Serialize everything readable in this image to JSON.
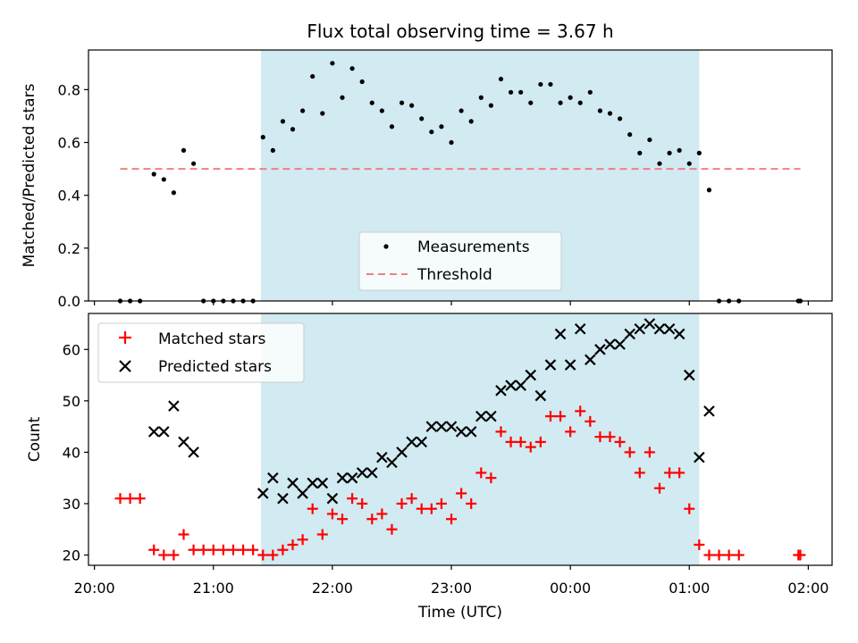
{
  "figure": {
    "title": "Flux total observing time = 3.67 h",
    "xlabel": "Time (UTC)"
  },
  "chart_data": [
    {
      "type": "scatter",
      "panel": "top",
      "ylabel": "Matched/Predicted stars",
      "xlim": [
        "19:57",
        "02:12"
      ],
      "ylim": [
        0,
        0.95
      ],
      "yticks": [
        "0.0",
        "0.2",
        "0.4",
        "0.6",
        "0.8"
      ],
      "shaded_region": {
        "x_start": "21:24",
        "x_end": "01:05",
        "color": "#d2eaf1"
      },
      "legend": {
        "placement": "lower-center",
        "entries": [
          "Measurements",
          "Threshold"
        ]
      },
      "threshold": {
        "name": "Threshold",
        "y": 0.5,
        "x_start": "20:13",
        "x_end": "01:56",
        "color": "#f08080"
      },
      "series": [
        {
          "name": "Measurements",
          "color": "#000000",
          "points": [
            [
              "20:13",
              0.0
            ],
            [
              "20:18",
              0.0
            ],
            [
              "20:23",
              0.0
            ],
            [
              "20:30",
              0.48
            ],
            [
              "20:35",
              0.46
            ],
            [
              "20:40",
              0.41
            ],
            [
              "20:45",
              0.57
            ],
            [
              "20:50",
              0.52
            ],
            [
              "20:55",
              0.0
            ],
            [
              "21:00",
              0.0
            ],
            [
              "21:05",
              0.0
            ],
            [
              "21:10",
              0.0
            ],
            [
              "21:15",
              0.0
            ],
            [
              "21:20",
              0.0
            ],
            [
              "21:25",
              0.62
            ],
            [
              "21:30",
              0.57
            ],
            [
              "21:35",
              0.68
            ],
            [
              "21:40",
              0.65
            ],
            [
              "21:45",
              0.72
            ],
            [
              "21:50",
              0.85
            ],
            [
              "21:55",
              0.71
            ],
            [
              "22:00",
              0.9
            ],
            [
              "22:05",
              0.77
            ],
            [
              "22:10",
              0.88
            ],
            [
              "22:15",
              0.83
            ],
            [
              "22:20",
              0.75
            ],
            [
              "22:25",
              0.72
            ],
            [
              "22:30",
              0.66
            ],
            [
              "22:35",
              0.75
            ],
            [
              "22:40",
              0.74
            ],
            [
              "22:45",
              0.69
            ],
            [
              "22:50",
              0.64
            ],
            [
              "22:55",
              0.66
            ],
            [
              "23:00",
              0.6
            ],
            [
              "23:05",
              0.72
            ],
            [
              "23:10",
              0.68
            ],
            [
              "23:15",
              0.77
            ],
            [
              "23:20",
              0.74
            ],
            [
              "23:25",
              0.84
            ],
            [
              "23:30",
              0.79
            ],
            [
              "23:35",
              0.79
            ],
            [
              "23:40",
              0.75
            ],
            [
              "23:45",
              0.82
            ],
            [
              "23:50",
              0.82
            ],
            [
              "23:55",
              0.75
            ],
            [
              "00:00",
              0.77
            ],
            [
              "00:05",
              0.75
            ],
            [
              "00:10",
              0.79
            ],
            [
              "00:15",
              0.72
            ],
            [
              "00:20",
              0.71
            ],
            [
              "00:25",
              0.69
            ],
            [
              "00:30",
              0.63
            ],
            [
              "00:35",
              0.56
            ],
            [
              "00:40",
              0.61
            ],
            [
              "00:45",
              0.52
            ],
            [
              "00:50",
              0.56
            ],
            [
              "00:55",
              0.57
            ],
            [
              "01:00",
              0.52
            ],
            [
              "01:05",
              0.56
            ],
            [
              "01:10",
              0.42
            ],
            [
              "01:15",
              0.0
            ],
            [
              "01:20",
              0.0
            ],
            [
              "01:25",
              0.0
            ],
            [
              "01:55",
              0.0
            ],
            [
              "01:56",
              0.0
            ]
          ]
        }
      ]
    },
    {
      "type": "scatter",
      "panel": "bottom",
      "ylabel": "Count",
      "xlabel": "Time (UTC)",
      "xlim": [
        "19:57",
        "02:12"
      ],
      "ylim": [
        18,
        67
      ],
      "yticks": [
        "20",
        "30",
        "40",
        "50",
        "60"
      ],
      "xticks": [
        "20:00",
        "21:00",
        "22:00",
        "23:00",
        "00:00",
        "01:00",
        "02:00"
      ],
      "shaded_region": {
        "x_start": "21:24",
        "x_end": "01:05",
        "color": "#d2eaf1"
      },
      "legend": {
        "placement": "upper-left",
        "entries": [
          "Matched stars",
          "Predicted stars"
        ]
      },
      "series": [
        {
          "name": "Matched stars",
          "marker": "plus",
          "color": "#ff0000",
          "points": [
            [
              "20:13",
              31
            ],
            [
              "20:18",
              31
            ],
            [
              "20:23",
              31
            ],
            [
              "20:30",
              21
            ],
            [
              "20:35",
              20
            ],
            [
              "20:40",
              20
            ],
            [
              "20:45",
              24
            ],
            [
              "20:50",
              21
            ],
            [
              "20:55",
              21
            ],
            [
              "21:00",
              21
            ],
            [
              "21:05",
              21
            ],
            [
              "21:10",
              21
            ],
            [
              "21:15",
              21
            ],
            [
              "21:20",
              21
            ],
            [
              "21:25",
              20
            ],
            [
              "21:30",
              20
            ],
            [
              "21:35",
              21
            ],
            [
              "21:40",
              22
            ],
            [
              "21:45",
              23
            ],
            [
              "21:50",
              29
            ],
            [
              "21:55",
              24
            ],
            [
              "22:00",
              28
            ],
            [
              "22:05",
              27
            ],
            [
              "22:10",
              31
            ],
            [
              "22:15",
              30
            ],
            [
              "22:20",
              27
            ],
            [
              "22:25",
              28
            ],
            [
              "22:30",
              25
            ],
            [
              "22:35",
              30
            ],
            [
              "22:40",
              31
            ],
            [
              "22:45",
              29
            ],
            [
              "22:50",
              29
            ],
            [
              "22:55",
              30
            ],
            [
              "23:00",
              27
            ],
            [
              "23:05",
              32
            ],
            [
              "23:10",
              30
            ],
            [
              "23:15",
              36
            ],
            [
              "23:20",
              35
            ],
            [
              "23:25",
              44
            ],
            [
              "23:30",
              42
            ],
            [
              "23:35",
              42
            ],
            [
              "23:40",
              41
            ],
            [
              "23:45",
              42
            ],
            [
              "23:50",
              47
            ],
            [
              "23:55",
              47
            ],
            [
              "00:00",
              44
            ],
            [
              "00:05",
              48
            ],
            [
              "00:10",
              46
            ],
            [
              "00:15",
              43
            ],
            [
              "00:20",
              43
            ],
            [
              "00:25",
              42
            ],
            [
              "00:30",
              40
            ],
            [
              "00:35",
              36
            ],
            [
              "00:40",
              40
            ],
            [
              "00:45",
              33
            ],
            [
              "00:50",
              36
            ],
            [
              "00:55",
              36
            ],
            [
              "01:00",
              29
            ],
            [
              "01:05",
              22
            ],
            [
              "01:10",
              20
            ],
            [
              "01:15",
              20
            ],
            [
              "01:20",
              20
            ],
            [
              "01:25",
              20
            ],
            [
              "01:55",
              20
            ],
            [
              "01:56",
              20
            ]
          ]
        },
        {
          "name": "Predicted stars",
          "marker": "x",
          "color": "#000000",
          "points": [
            [
              "20:30",
              44
            ],
            [
              "20:35",
              44
            ],
            [
              "20:40",
              49
            ],
            [
              "20:45",
              42
            ],
            [
              "20:50",
              40
            ],
            [
              "21:25",
              32
            ],
            [
              "21:30",
              35
            ],
            [
              "21:35",
              31
            ],
            [
              "21:40",
              34
            ],
            [
              "21:45",
              32
            ],
            [
              "21:50",
              34
            ],
            [
              "21:55",
              34
            ],
            [
              "22:00",
              31
            ],
            [
              "22:05",
              35
            ],
            [
              "22:10",
              35
            ],
            [
              "22:15",
              36
            ],
            [
              "22:20",
              36
            ],
            [
              "22:25",
              39
            ],
            [
              "22:30",
              38
            ],
            [
              "22:35",
              40
            ],
            [
              "22:40",
              42
            ],
            [
              "22:45",
              42
            ],
            [
              "22:50",
              45
            ],
            [
              "22:55",
              45
            ],
            [
              "23:00",
              45
            ],
            [
              "23:05",
              44
            ],
            [
              "23:10",
              44
            ],
            [
              "23:15",
              47
            ],
            [
              "23:20",
              47
            ],
            [
              "23:25",
              52
            ],
            [
              "23:30",
              53
            ],
            [
              "23:35",
              53
            ],
            [
              "23:40",
              55
            ],
            [
              "23:45",
              51
            ],
            [
              "23:50",
              57
            ],
            [
              "23:55",
              63
            ],
            [
              "00:00",
              57
            ],
            [
              "00:05",
              64
            ],
            [
              "00:10",
              58
            ],
            [
              "00:15",
              60
            ],
            [
              "00:20",
              61
            ],
            [
              "00:25",
              61
            ],
            [
              "00:30",
              63
            ],
            [
              "00:35",
              64
            ],
            [
              "00:40",
              65
            ],
            [
              "00:45",
              64
            ],
            [
              "00:50",
              64
            ],
            [
              "00:55",
              63
            ],
            [
              "01:00",
              55
            ],
            [
              "01:05",
              39
            ],
            [
              "01:10",
              48
            ]
          ]
        }
      ]
    }
  ]
}
